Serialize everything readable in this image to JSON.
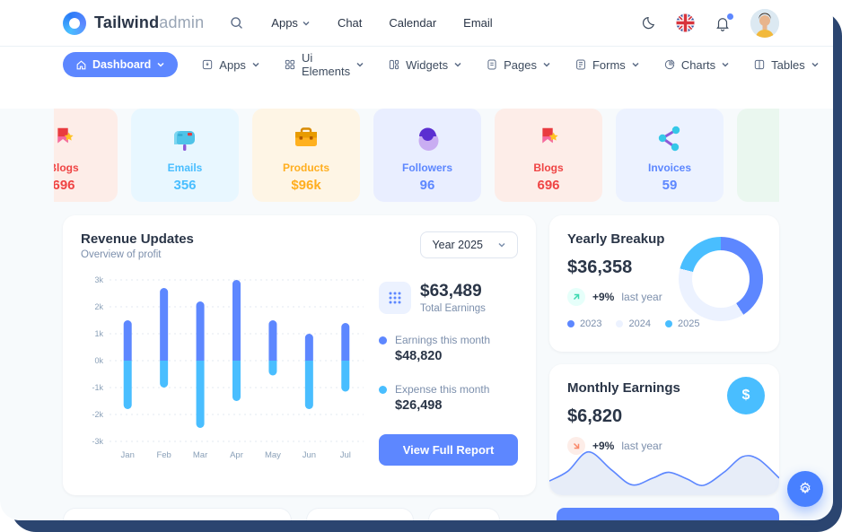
{
  "header": {
    "brand_bold": "Tailwind",
    "brand_light": "admin",
    "menu": [
      {
        "label": "Apps",
        "has_dropdown": true
      },
      {
        "label": "Chat",
        "has_dropdown": false
      },
      {
        "label": "Calendar",
        "has_dropdown": false
      },
      {
        "label": "Email",
        "has_dropdown": false
      }
    ]
  },
  "nav": {
    "items": [
      {
        "label": "Dashboard",
        "active": true
      },
      {
        "label": "Apps",
        "active": false
      },
      {
        "label": "Ui Elements",
        "active": false
      },
      {
        "label": "Widgets",
        "active": false
      },
      {
        "label": "Pages",
        "active": false
      },
      {
        "label": "Forms",
        "active": false
      },
      {
        "label": "Charts",
        "active": false
      },
      {
        "label": "Tables",
        "active": false
      }
    ]
  },
  "stats": {
    "cards": [
      {
        "label": "Blogs",
        "value": "696",
        "theme": "blogs"
      },
      {
        "label": "Emails",
        "value": "356",
        "theme": "emails"
      },
      {
        "label": "Products",
        "value": "$96k",
        "theme": "products"
      },
      {
        "label": "Followers",
        "value": "96",
        "theme": "followers"
      },
      {
        "label": "Blogs",
        "value": "696",
        "theme": "blogs"
      },
      {
        "label": "Invoices",
        "value": "59",
        "theme": "invoices"
      },
      {
        "label": "",
        "value": "",
        "theme": "green"
      }
    ]
  },
  "revenue": {
    "title": "Revenue Updates",
    "subtitle": "Overview of profit",
    "year_select": "Year 2025",
    "total_value": "$63,489",
    "total_label": "Total Earnings",
    "earnings_label": "Earnings this month",
    "earnings_value": "$48,820",
    "expense_label": "Expense this month",
    "expense_value": "$26,498",
    "button_label": "View Full Report"
  },
  "yearly": {
    "title": "Yearly Breakup",
    "value": "$36,358",
    "delta": "+9%",
    "delta_label": "last year",
    "legend": [
      "2023",
      "2024",
      "2025"
    ]
  },
  "monthly": {
    "title": "Monthly Earnings",
    "value": "$6,820",
    "delta": "+9%",
    "delta_label": "last year",
    "fab_symbol": "$"
  },
  "chart_data": [
    {
      "id": "revenue-bars",
      "type": "bar",
      "title": "Revenue Updates",
      "categories": [
        "Jan",
        "Feb",
        "Mar",
        "Apr",
        "May",
        "Jun",
        "Jul"
      ],
      "series": [
        {
          "name": "Earnings this month",
          "color": "#5D87FF",
          "values": [
            1500,
            2700,
            2200,
            3000,
            1500,
            1000,
            1400
          ]
        },
        {
          "name": "Expense this month",
          "color": "#49BEFF",
          "values": [
            -1800,
            -1000,
            -2500,
            -1500,
            -550,
            -1800,
            -1150
          ]
        }
      ],
      "ylim": [
        -3000,
        3000
      ],
      "yticks": [
        3000,
        2000,
        1000,
        0,
        -1000,
        -2000,
        -3000
      ],
      "ytick_labels": [
        "3k",
        "2k",
        "1k",
        "0k",
        "-1k",
        "-2k",
        "-3k"
      ],
      "grid": "dotted-horizontal",
      "legend_position": "right-panel"
    },
    {
      "id": "yearly-donut",
      "type": "pie",
      "title": "Yearly Breakup",
      "labels": [
        "2023",
        "2024",
        "2025"
      ],
      "values": [
        41,
        38,
        21
      ],
      "colors": [
        "#5D87FF",
        "#ECF2FF",
        "#49BEFF"
      ],
      "donut": true
    },
    {
      "id": "monthly-spark",
      "type": "area",
      "title": "Monthly Earnings",
      "x": [
        0,
        8,
        17,
        27,
        36,
        45,
        52,
        60,
        67,
        76,
        84,
        91,
        100
      ],
      "y": [
        78,
        58,
        18,
        55,
        86,
        72,
        60,
        74,
        87,
        60,
        28,
        33,
        72
      ],
      "line_color": "#5D87FF",
      "fill_color": "#E7EDF8"
    }
  ],
  "colors": {
    "primary": "#5D87FF",
    "secondary": "#49BEFF",
    "text_dark": "#2A3547",
    "text_muted": "#7C8FAC",
    "frame": "#2B4570"
  }
}
